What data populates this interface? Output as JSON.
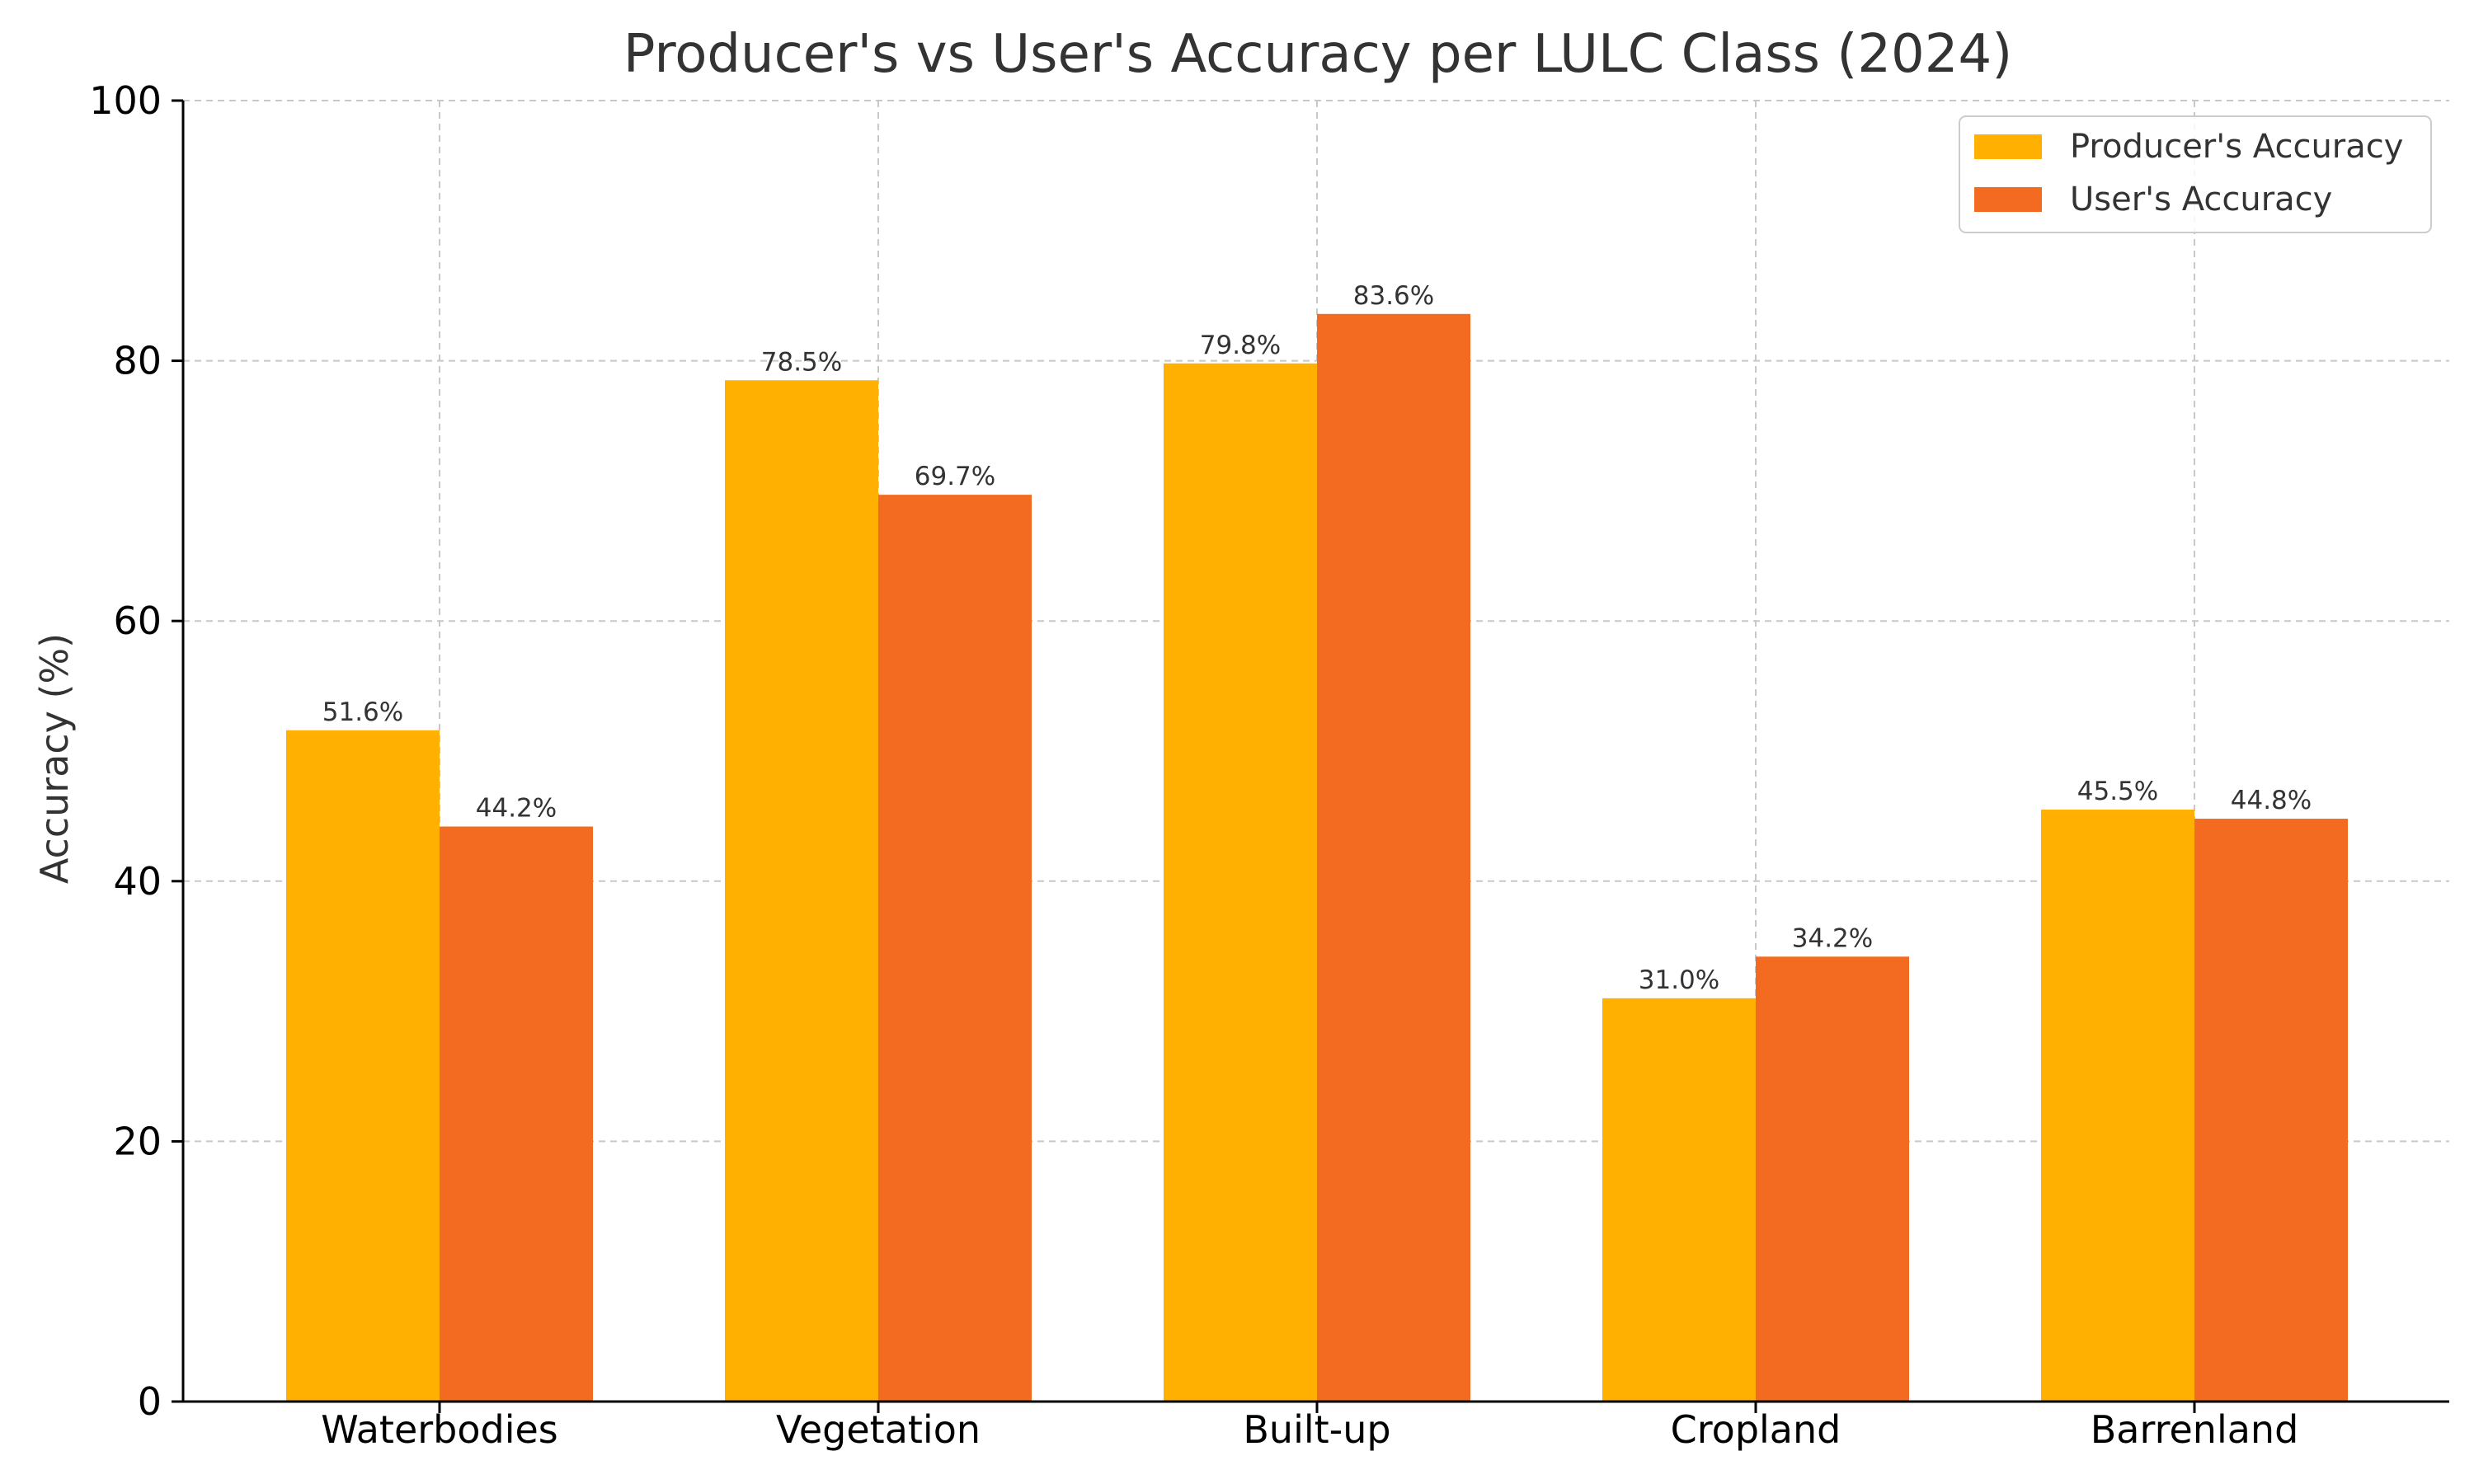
{
  "chart_data": {
    "type": "bar",
    "title": "Producer's vs User's Accuracy per LULC Class (2024)",
    "xlabel": "",
    "ylabel": "Accuracy (%)",
    "ylim": [
      0,
      100
    ],
    "yticks": [
      0,
      20,
      40,
      60,
      80,
      100
    ],
    "categories": [
      "Waterbodies",
      "Vegetation",
      "Built-up",
      "Cropland",
      "Barrenland"
    ],
    "series": [
      {
        "name": "Producer's Accuracy",
        "color": "#FFB000",
        "values": [
          51.6,
          78.5,
          79.8,
          31.0,
          45.5
        ],
        "labels": [
          "51.6%",
          "78.5%",
          "79.8%",
          "31.0%",
          "45.5%"
        ]
      },
      {
        "name": "User's Accuracy",
        "color": "#F26B21",
        "values": [
          44.2,
          69.7,
          83.6,
          34.2,
          44.8
        ],
        "labels": [
          "44.2%",
          "69.7%",
          "83.6%",
          "34.2%",
          "44.8%"
        ]
      }
    ],
    "grid": true,
    "legend_position": "top-right"
  }
}
